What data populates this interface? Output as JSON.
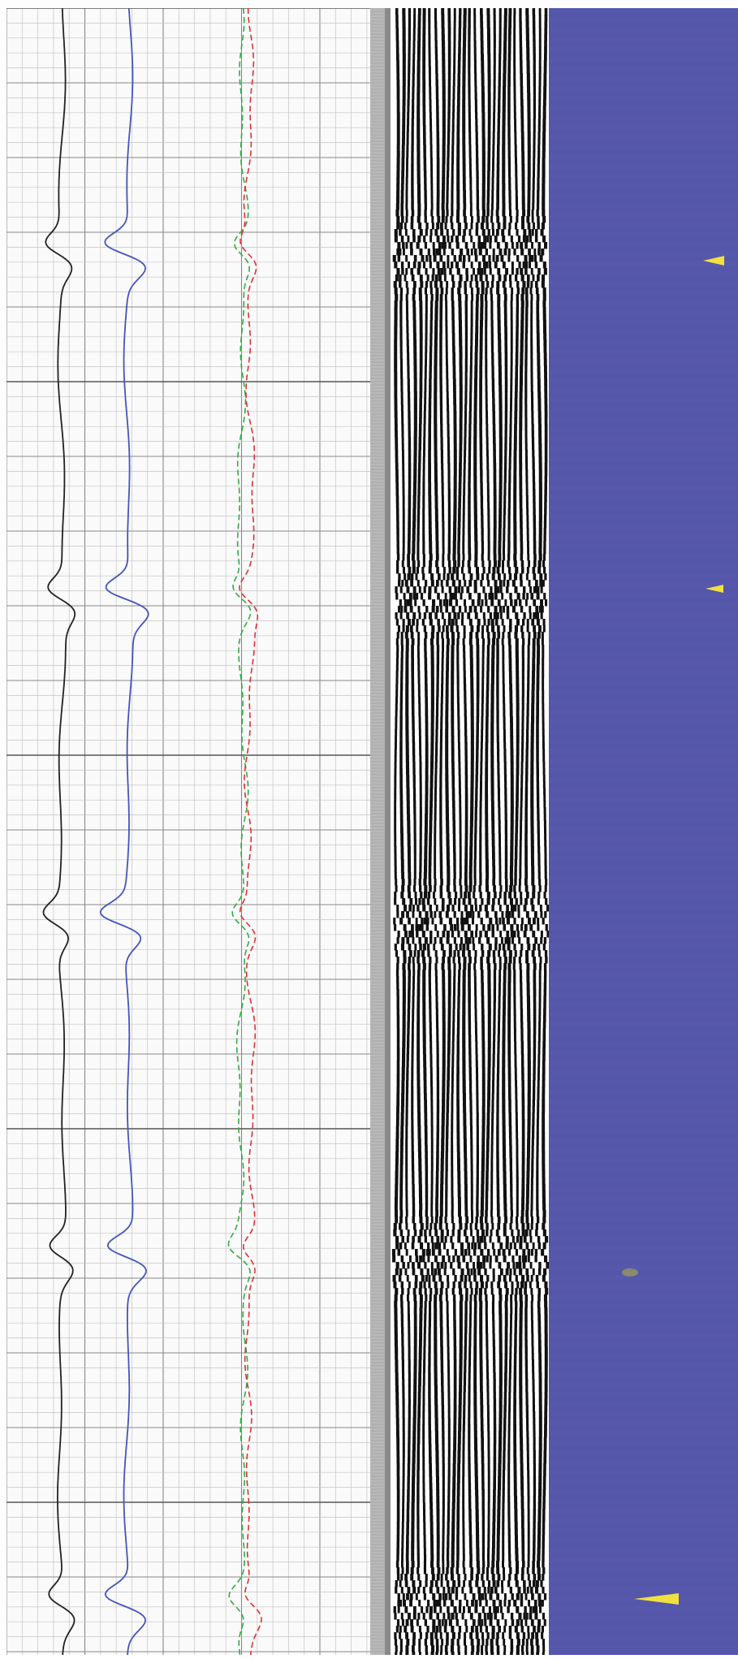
{
  "log": {
    "tracks": [
      "grid-track",
      "scale-strip",
      "acoustic-waveform-track",
      "borehole-image-track"
    ],
    "curves": [
      {
        "id": "curve-black",
        "color": "#222222",
        "style": "solid"
      },
      {
        "id": "curve-blue",
        "color": "#4455bb",
        "style": "solid"
      },
      {
        "id": "curve-green",
        "color": "#33aa44",
        "style": "dashed"
      },
      {
        "id": "curve-red",
        "color": "#e03030",
        "style": "dashed"
      }
    ],
    "colors": {
      "grid_minor": "#c4c4c4",
      "grid_major": "#888888",
      "strip": "#b8b8b8",
      "wave_dark": "#111111",
      "image_background": "#5556aa",
      "marker": "#f0e040"
    },
    "features": [
      "collar-1",
      "collar-2",
      "collar-3",
      "collar-4",
      "collar-5"
    ]
  }
}
